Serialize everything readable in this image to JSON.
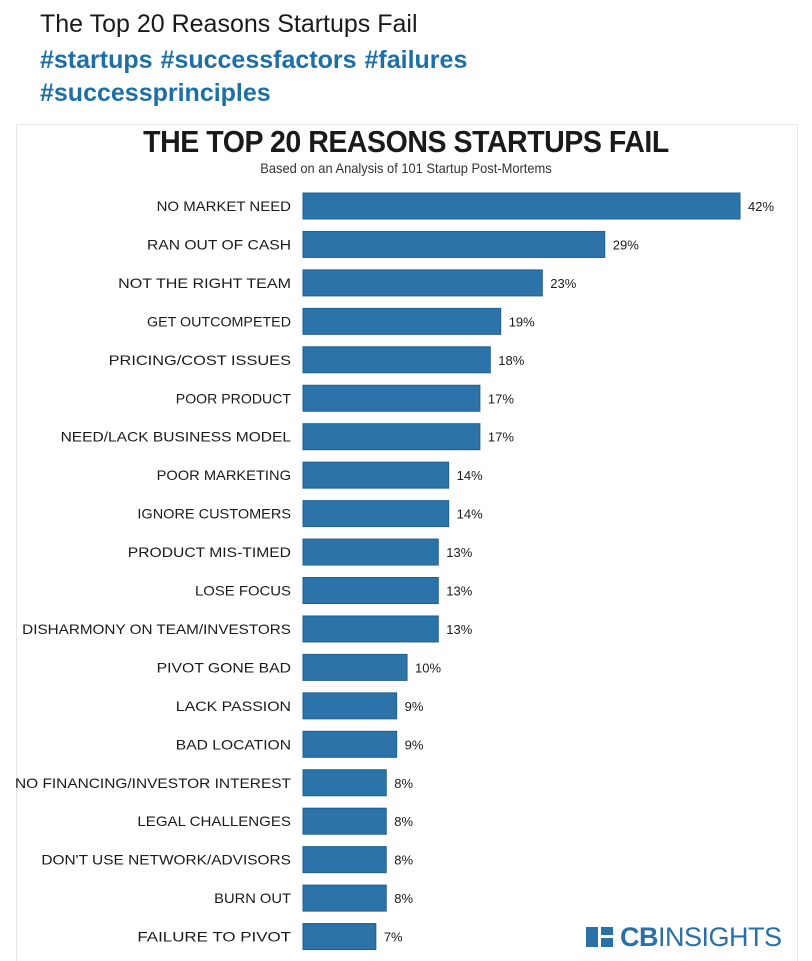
{
  "post": {
    "title": "The Top 20 Reasons Startups Fail",
    "hashtags_line1": [
      "#startups",
      "#successfactors",
      "#failures"
    ],
    "hashtags_line2": [
      "#successprinciples"
    ]
  },
  "logo": {
    "text_bold": "CB",
    "text_rest": "INSIGHTS",
    "color": "#2a6fa6",
    "icon": "cbinsights-logo-icon"
  },
  "colors": {
    "bar": "#2b73a8",
    "bar_border": "#1f5f8f",
    "hashtag": "#1d6fa5"
  },
  "chart_data": {
    "type": "bar",
    "orientation": "horizontal",
    "title": "THE TOP 20 REASONS STARTUPS FAIL",
    "subtitle": "Based on an Analysis of 101 Startup Post-Mortems",
    "categories": [
      "NO MARKET NEED",
      "RAN OUT OF CASH",
      "NOT THE RIGHT TEAM",
      "GET OUTCOMPETED",
      "PRICING/COST ISSUES",
      "POOR PRODUCT",
      "NEED/LACK BUSINESS MODEL",
      "POOR MARKETING",
      "IGNORE CUSTOMERS",
      "PRODUCT MIS-TIMED",
      "LOSE FOCUS",
      "DISHARMONY ON TEAM/INVESTORS",
      "PIVOT GONE BAD",
      "LACK PASSION",
      "BAD LOCATION",
      "NO FINANCING/INVESTOR INTEREST",
      "LEGAL CHALLENGES",
      "DON'T USE NETWORK/ADVISORS",
      "BURN OUT",
      "FAILURE TO PIVOT"
    ],
    "values": [
      42,
      29,
      23,
      19,
      18,
      17,
      17,
      14,
      14,
      13,
      13,
      13,
      10,
      9,
      9,
      8,
      8,
      8,
      8,
      7
    ],
    "data_labels": [
      "42%",
      "29%",
      "23%",
      "19%",
      "18%",
      "17%",
      "17%",
      "14%",
      "14%",
      "13%",
      "13%",
      "13%",
      "10%",
      "9%",
      "9%",
      "8%",
      "8%",
      "8%",
      "8%",
      "7%"
    ],
    "xlim": [
      0,
      42
    ],
    "grid": false,
    "legend": "none"
  }
}
